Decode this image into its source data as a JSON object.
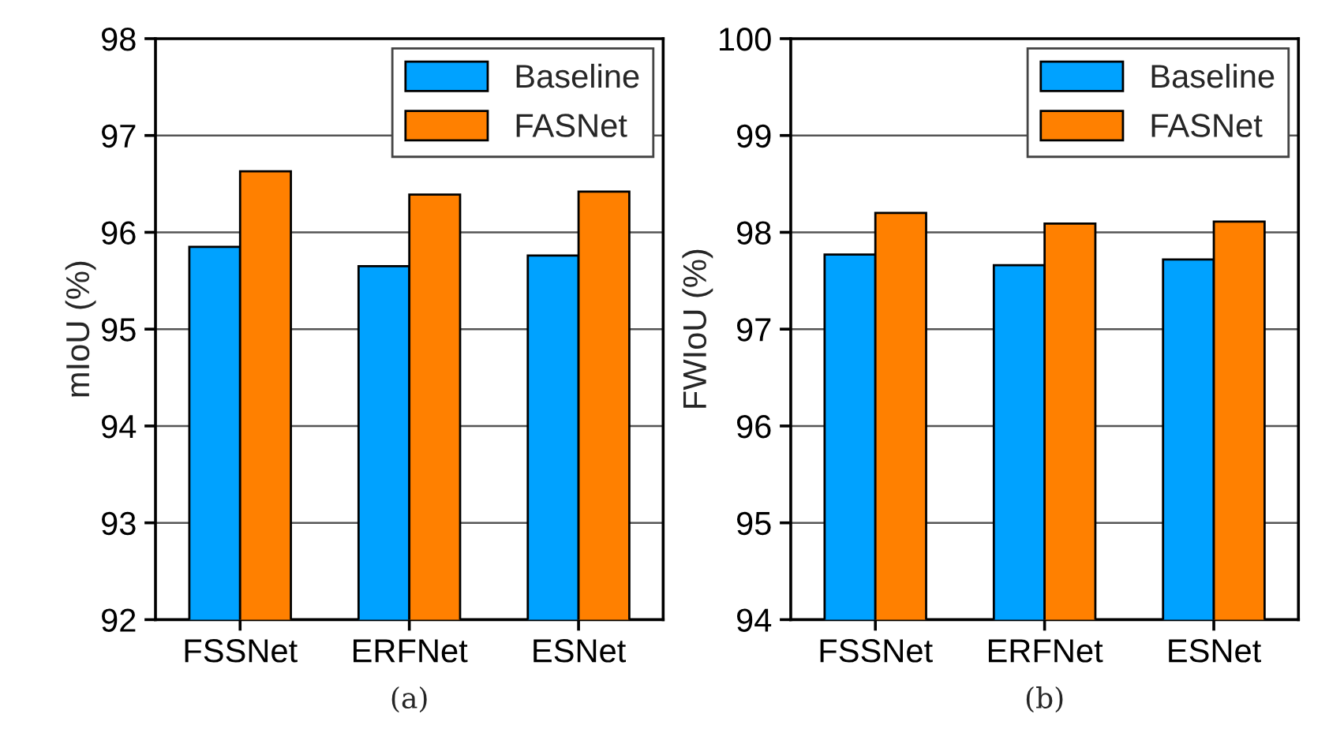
{
  "chart_data": [
    {
      "type": "bar",
      "ylabel": "mIoU (%)",
      "categories": [
        "FSSNet",
        "ERFNet",
        "ESNet"
      ],
      "series": [
        {
          "name": "Baseline",
          "color": "#00a2ff",
          "values": [
            95.85,
            95.65,
            95.76
          ]
        },
        {
          "name": "FASNet",
          "color": "#ff8000",
          "values": [
            96.63,
            96.39,
            96.42
          ]
        }
      ],
      "ylim": [
        92,
        98
      ],
      "yticks": [
        92,
        93,
        94,
        95,
        96,
        97,
        98
      ],
      "grid": "y",
      "legend": "top right",
      "annotations": [
        "(a)"
      ]
    },
    {
      "type": "bar",
      "ylabel": "FWIoU (%)",
      "categories": [
        "FSSNet",
        "ERFNet",
        "ESNet"
      ],
      "series": [
        {
          "name": "Baseline",
          "color": "#00a2ff",
          "values": [
            97.77,
            97.66,
            97.72
          ]
        },
        {
          "name": "FASNet",
          "color": "#ff8000",
          "values": [
            98.2,
            98.09,
            98.11
          ]
        }
      ],
      "ylim": [
        94,
        100
      ],
      "yticks": [
        94,
        95,
        96,
        97,
        98,
        99,
        100
      ],
      "grid": "y",
      "legend": "top right",
      "annotations": [
        "(b)"
      ]
    }
  ]
}
